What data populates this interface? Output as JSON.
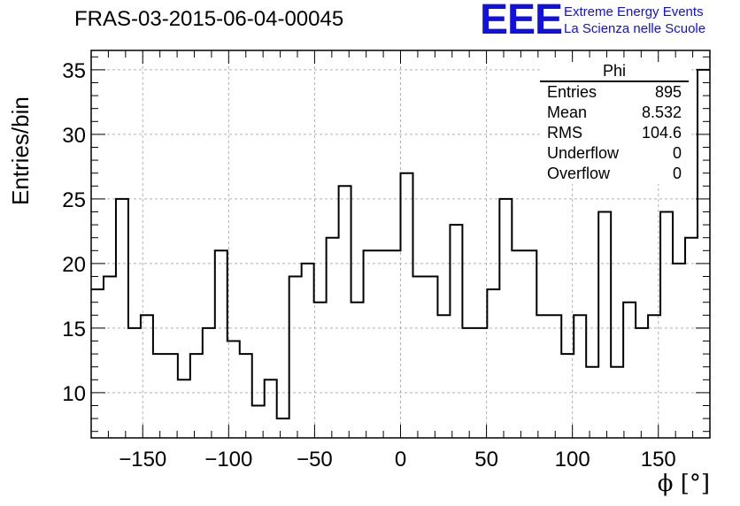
{
  "header": {
    "run_title": "FRAS-03-2015-06-04-00045",
    "logo_letters": "EEE",
    "logo_line1": "Extreme Energy Events",
    "logo_line2": "La Scienza nelle Scuole",
    "brand_color": "#1010e0"
  },
  "stats_box": {
    "title": "Phi",
    "rows": [
      {
        "label": "Entries",
        "value": "895"
      },
      {
        "label": "Mean",
        "value": "8.532"
      },
      {
        "label": "RMS",
        "value": "104.6"
      },
      {
        "label": "Underflow",
        "value": "0"
      },
      {
        "label": "Overflow",
        "value": "0"
      }
    ]
  },
  "chart_data": {
    "type": "histogram",
    "title": "FRAS-03-2015-06-04-00045",
    "xlabel": "ϕ [°]",
    "ylabel": "Entries/bin",
    "xlim": [
      -180,
      180
    ],
    "ylim": [
      6.5,
      36.5
    ],
    "bin_width": 7.2,
    "bin_low_edges": [
      -180,
      -172.8,
      -165.6,
      -158.4,
      -151.2,
      -144,
      -136.8,
      -129.6,
      -122.4,
      -115.2,
      -108,
      -100.8,
      -93.6,
      -86.4,
      -79.2,
      -72,
      -64.8,
      -57.6,
      -50.4,
      -43.2,
      -36,
      -28.8,
      -21.6,
      -14.4,
      -7.2,
      0,
      7.2,
      14.4,
      21.6,
      28.8,
      36,
      43.2,
      50.4,
      57.6,
      64.8,
      72,
      79.2,
      86.4,
      93.6,
      100.8,
      108,
      115.2,
      122.4,
      129.6,
      136.8,
      144,
      151.2,
      158.4,
      165.6,
      172.8
    ],
    "values": [
      18,
      19,
      25,
      15,
      16,
      13,
      13,
      11,
      13,
      15,
      21,
      14,
      13,
      9,
      11,
      8,
      19,
      20,
      17,
      22,
      26,
      17,
      21,
      21,
      21,
      27,
      19,
      19,
      16,
      23,
      15,
      15,
      18,
      25,
      21,
      21,
      16,
      16,
      13,
      16,
      12,
      24,
      12,
      17,
      15,
      16,
      24,
      20,
      22,
      35
    ],
    "x_ticks": [
      -150,
      -100,
      -50,
      0,
      50,
      100,
      150
    ],
    "x_tick_labels": [
      "−150",
      "−100",
      "−50",
      "0",
      "50",
      "100",
      "150"
    ],
    "y_ticks": [
      10,
      15,
      20,
      25,
      30,
      35
    ],
    "y_tick_labels": [
      "10",
      "15",
      "20",
      "25",
      "30",
      "35"
    ],
    "grid": true,
    "line_color": "#000000",
    "grid_color": "#b0b0b0"
  }
}
